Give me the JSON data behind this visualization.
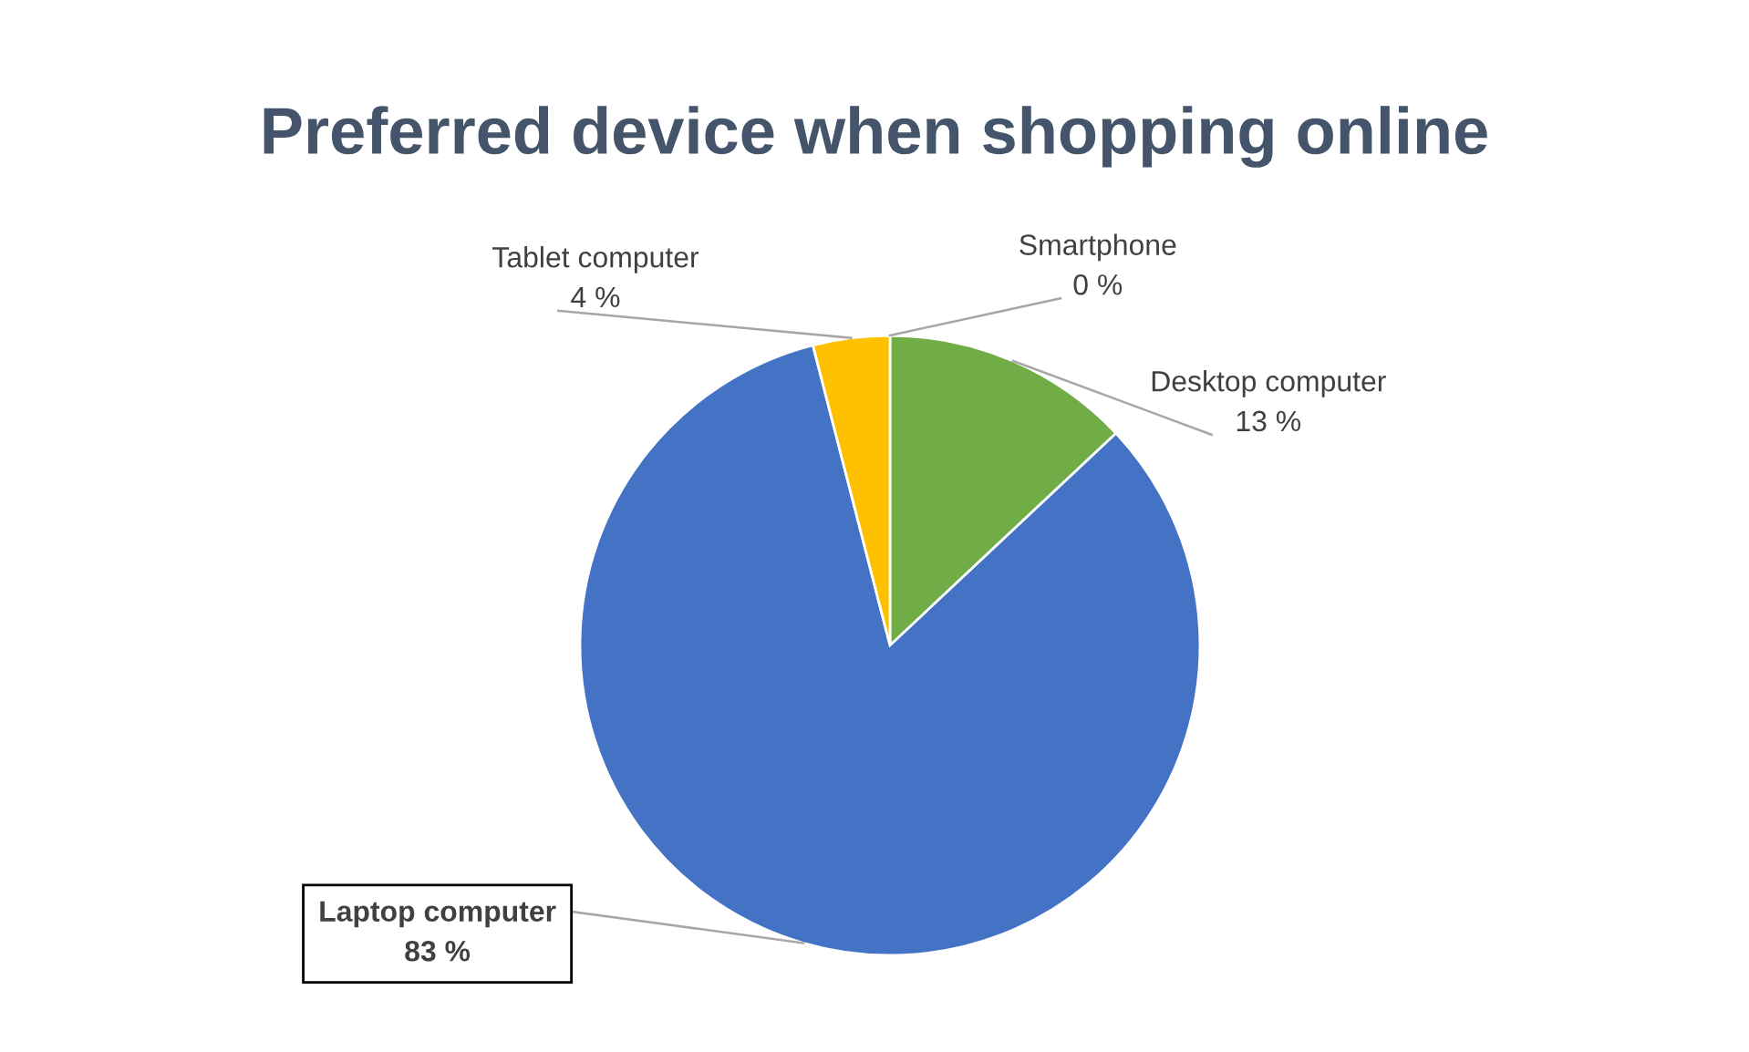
{
  "chart_data": {
    "type": "pie",
    "title": "Preferred device when shopping online",
    "categories": [
      "Smartphone",
      "Desktop computer",
      "Laptop computer",
      "Tablet computer"
    ],
    "values": [
      0,
      13,
      83,
      4
    ],
    "value_labels": [
      "0 %",
      "13 %",
      "83 %",
      "4 %"
    ],
    "colors": [
      "#ed7d31",
      "#70ad47",
      "#4472c4",
      "#ffc000"
    ],
    "legend": false
  }
}
